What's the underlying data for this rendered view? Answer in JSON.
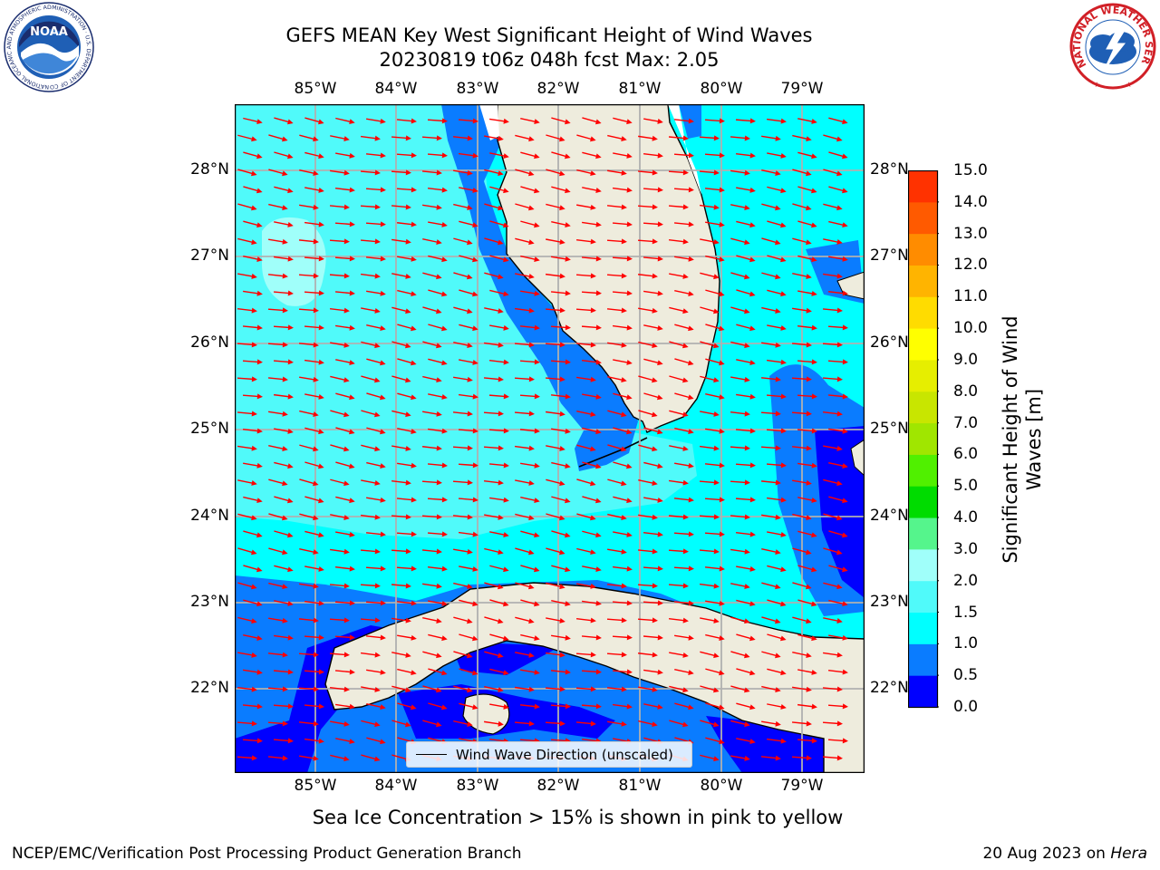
{
  "header": {
    "title_line1": "GEFS MEAN Key West Significant Height of Wind Waves",
    "title_line2": "20230819 t06z 048h fcst   Max: 2.05"
  },
  "logos": {
    "noaa_text": "NOAA",
    "noaa_ring": "NATIONAL OCEANIC AND ATMOSPHERIC ADMINISTRATION · U.S. DEPARTMENT OF COMMERCE",
    "nws_ring": "NATIONAL WEATHER SERVICE"
  },
  "map": {
    "lon_labels": [
      "85°W",
      "84°W",
      "83°W",
      "82°W",
      "81°W",
      "80°W",
      "79°W"
    ],
    "lat_labels": [
      "28°N",
      "27°N",
      "26°N",
      "25°N",
      "24°N",
      "23°N",
      "22°N"
    ],
    "legend_label": "Wind Wave Direction (unscaled)",
    "arrow_color": "#ff0000",
    "land_color": "#eeecdd",
    "coast_color": "#000000"
  },
  "colorbar": {
    "label": "Significant Height of Wind Waves [m]",
    "ticks": [
      "0.0",
      "0.5",
      "1.0",
      "1.5",
      "2.0",
      "3.0",
      "4.0",
      "5.0",
      "6.0",
      "7.0",
      "8.0",
      "9.0",
      "10.0",
      "11.0",
      "12.0",
      "13.0",
      "14.0",
      "15.0"
    ],
    "colors": [
      "#0000ff",
      "#0a7cff",
      "#00ffff",
      "#50fafa",
      "#a0fffa",
      "#55f58c",
      "#00dc00",
      "#50f000",
      "#a0e600",
      "#c8e600",
      "#e6ee00",
      "#ffff00",
      "#ffdc00",
      "#ffb400",
      "#ff8c00",
      "#ff5a00",
      "#ff3200",
      "#ff0000"
    ]
  },
  "footer": {
    "note": "Sea Ice Concentration > 15% is shown in pink to yellow",
    "left": "NCEP/EMC/Verification Post Processing Product Generation Branch",
    "right_date": "20 Aug 2023 on ",
    "right_host": "Hera"
  }
}
